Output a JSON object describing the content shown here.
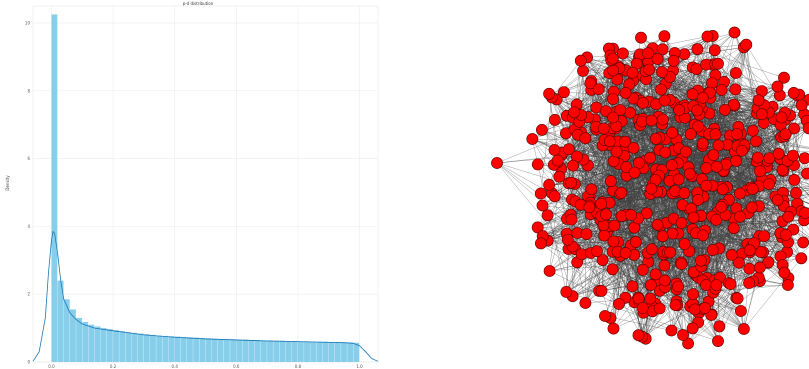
{
  "chart_data": [
    {
      "type": "bar",
      "title": "p-d distribution",
      "xlabel": "",
      "ylabel": "Density",
      "xlim": [
        -0.06,
        1.06
      ],
      "ylim": [
        0,
        10.5
      ],
      "x_ticks": [
        0.0,
        0.2,
        0.4,
        0.6,
        0.8,
        1.0
      ],
      "x_tick_labels": [
        "0.0",
        "0.2",
        "0.4",
        "0.6",
        "0.8",
        "1.0"
      ],
      "y_ticks": [
        0,
        2,
        4,
        6,
        8,
        10
      ],
      "y_tick_labels": [
        "0",
        "2",
        "4",
        "6",
        "8",
        "10"
      ],
      "grid": true,
      "bar_color": "#87ceeb",
      "kde_color": "#1f77b4",
      "bin_width": 0.02,
      "bin_starts": [
        0.0,
        0.02,
        0.04,
        0.06,
        0.08,
        0.1,
        0.12,
        0.14,
        0.16,
        0.18,
        0.2,
        0.22,
        0.24,
        0.26,
        0.28,
        0.3,
        0.32,
        0.34,
        0.36,
        0.38,
        0.4,
        0.42,
        0.44,
        0.46,
        0.48,
        0.5,
        0.52,
        0.54,
        0.56,
        0.58,
        0.6,
        0.62,
        0.64,
        0.66,
        0.68,
        0.7,
        0.72,
        0.74,
        0.76,
        0.78,
        0.8,
        0.82,
        0.84,
        0.86,
        0.88,
        0.9,
        0.92,
        0.94,
        0.96,
        0.98
      ],
      "values": [
        10.25,
        2.4,
        1.85,
        1.55,
        1.3,
        1.18,
        1.1,
        1.05,
        1.0,
        0.97,
        0.94,
        0.91,
        0.88,
        0.86,
        0.84,
        0.82,
        0.8,
        0.78,
        0.77,
        0.76,
        0.75,
        0.74,
        0.73,
        0.72,
        0.71,
        0.7,
        0.69,
        0.68,
        0.67,
        0.67,
        0.66,
        0.66,
        0.65,
        0.65,
        0.64,
        0.64,
        0.63,
        0.63,
        0.62,
        0.62,
        0.61,
        0.61,
        0.6,
        0.6,
        0.6,
        0.59,
        0.59,
        0.58,
        0.58,
        0.57
      ],
      "kde_x": [
        -0.06,
        -0.04,
        -0.02,
        -0.01,
        0.0,
        0.005,
        0.01,
        0.02,
        0.03,
        0.04,
        0.06,
        0.08,
        0.1,
        0.14,
        0.2,
        0.3,
        0.4,
        0.5,
        0.6,
        0.7,
        0.8,
        0.9,
        0.95,
        0.98,
        1.0,
        1.02,
        1.04,
        1.06
      ],
      "kde_y": [
        0.02,
        0.3,
        1.3,
        2.6,
        3.6,
        3.85,
        3.8,
        3.2,
        2.4,
        1.85,
        1.45,
        1.25,
        1.12,
        1.0,
        0.92,
        0.8,
        0.73,
        0.68,
        0.65,
        0.62,
        0.6,
        0.58,
        0.57,
        0.55,
        0.48,
        0.3,
        0.1,
        0.02
      ]
    },
    {
      "type": "network",
      "title": "",
      "node_color": "#ff0000",
      "edge_color": "#404040"
    }
  ]
}
